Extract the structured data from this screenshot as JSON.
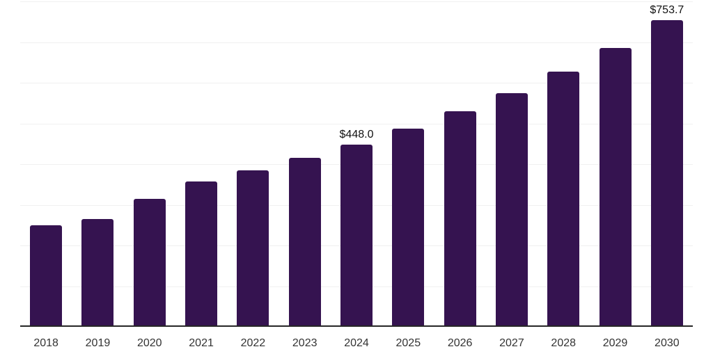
{
  "chart_data": {
    "type": "bar",
    "categories": [
      "2018",
      "2019",
      "2020",
      "2021",
      "2022",
      "2023",
      "2024",
      "2025",
      "2026",
      "2027",
      "2028",
      "2029",
      "2030"
    ],
    "values": [
      249,
      265,
      315,
      357,
      384,
      415,
      448.0,
      487,
      530,
      575,
      628,
      686,
      753.7
    ],
    "data_labels": [
      "",
      "",
      "",
      "",
      "",
      "",
      "$448.0",
      "",
      "",
      "",
      "",
      "",
      "$753.7"
    ],
    "title": "",
    "xlabel": "",
    "ylabel": "",
    "ylim": [
      0,
      800
    ],
    "gridline_step": 100,
    "grid": true,
    "legend": "none",
    "colors": {
      "bar": "#351350",
      "gridline": "#f0f0f0",
      "axis_line": "#262626",
      "tick_label": "#333333",
      "data_label": "#111111",
      "background": "#ffffff"
    }
  }
}
